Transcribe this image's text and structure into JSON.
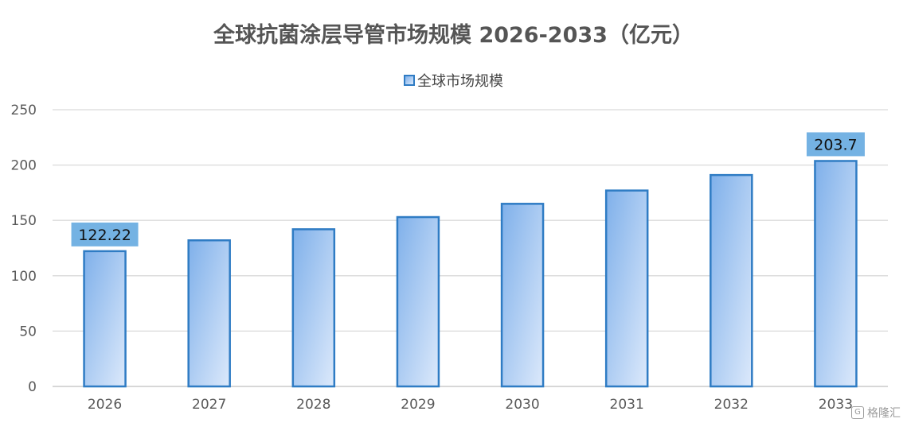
{
  "chart_data": {
    "type": "bar",
    "title": "全球抗菌涂层导管市场规模 2026-2033（亿元）",
    "categories": [
      "2026",
      "2027",
      "2028",
      "2029",
      "2030",
      "2031",
      "2032",
      "2033"
    ],
    "series": [
      {
        "name": "全球市场规模",
        "values": [
          122.22,
          132,
          142,
          153,
          165,
          177,
          191,
          203.7
        ]
      }
    ],
    "data_labels": [
      {
        "index": 0,
        "text": "122.22"
      },
      {
        "index": 7,
        "text": "203.7"
      }
    ],
    "yticks": [
      "0",
      "50",
      "100",
      "150",
      "200",
      "250"
    ],
    "ylim": [
      0,
      250
    ],
    "xlabel": "",
    "ylabel": "",
    "grid": true,
    "legend_position": "top",
    "colors": {
      "bar_gradient_start": "#7fb0ea",
      "bar_gradient_end": "#dce9fb",
      "bar_border": "#2f7cc4",
      "label_box": "#74b2e3",
      "grid": "#d9d9d9",
      "axis_text": "#595959"
    }
  },
  "watermark": {
    "text": "格隆汇",
    "icon": "logo-icon"
  }
}
